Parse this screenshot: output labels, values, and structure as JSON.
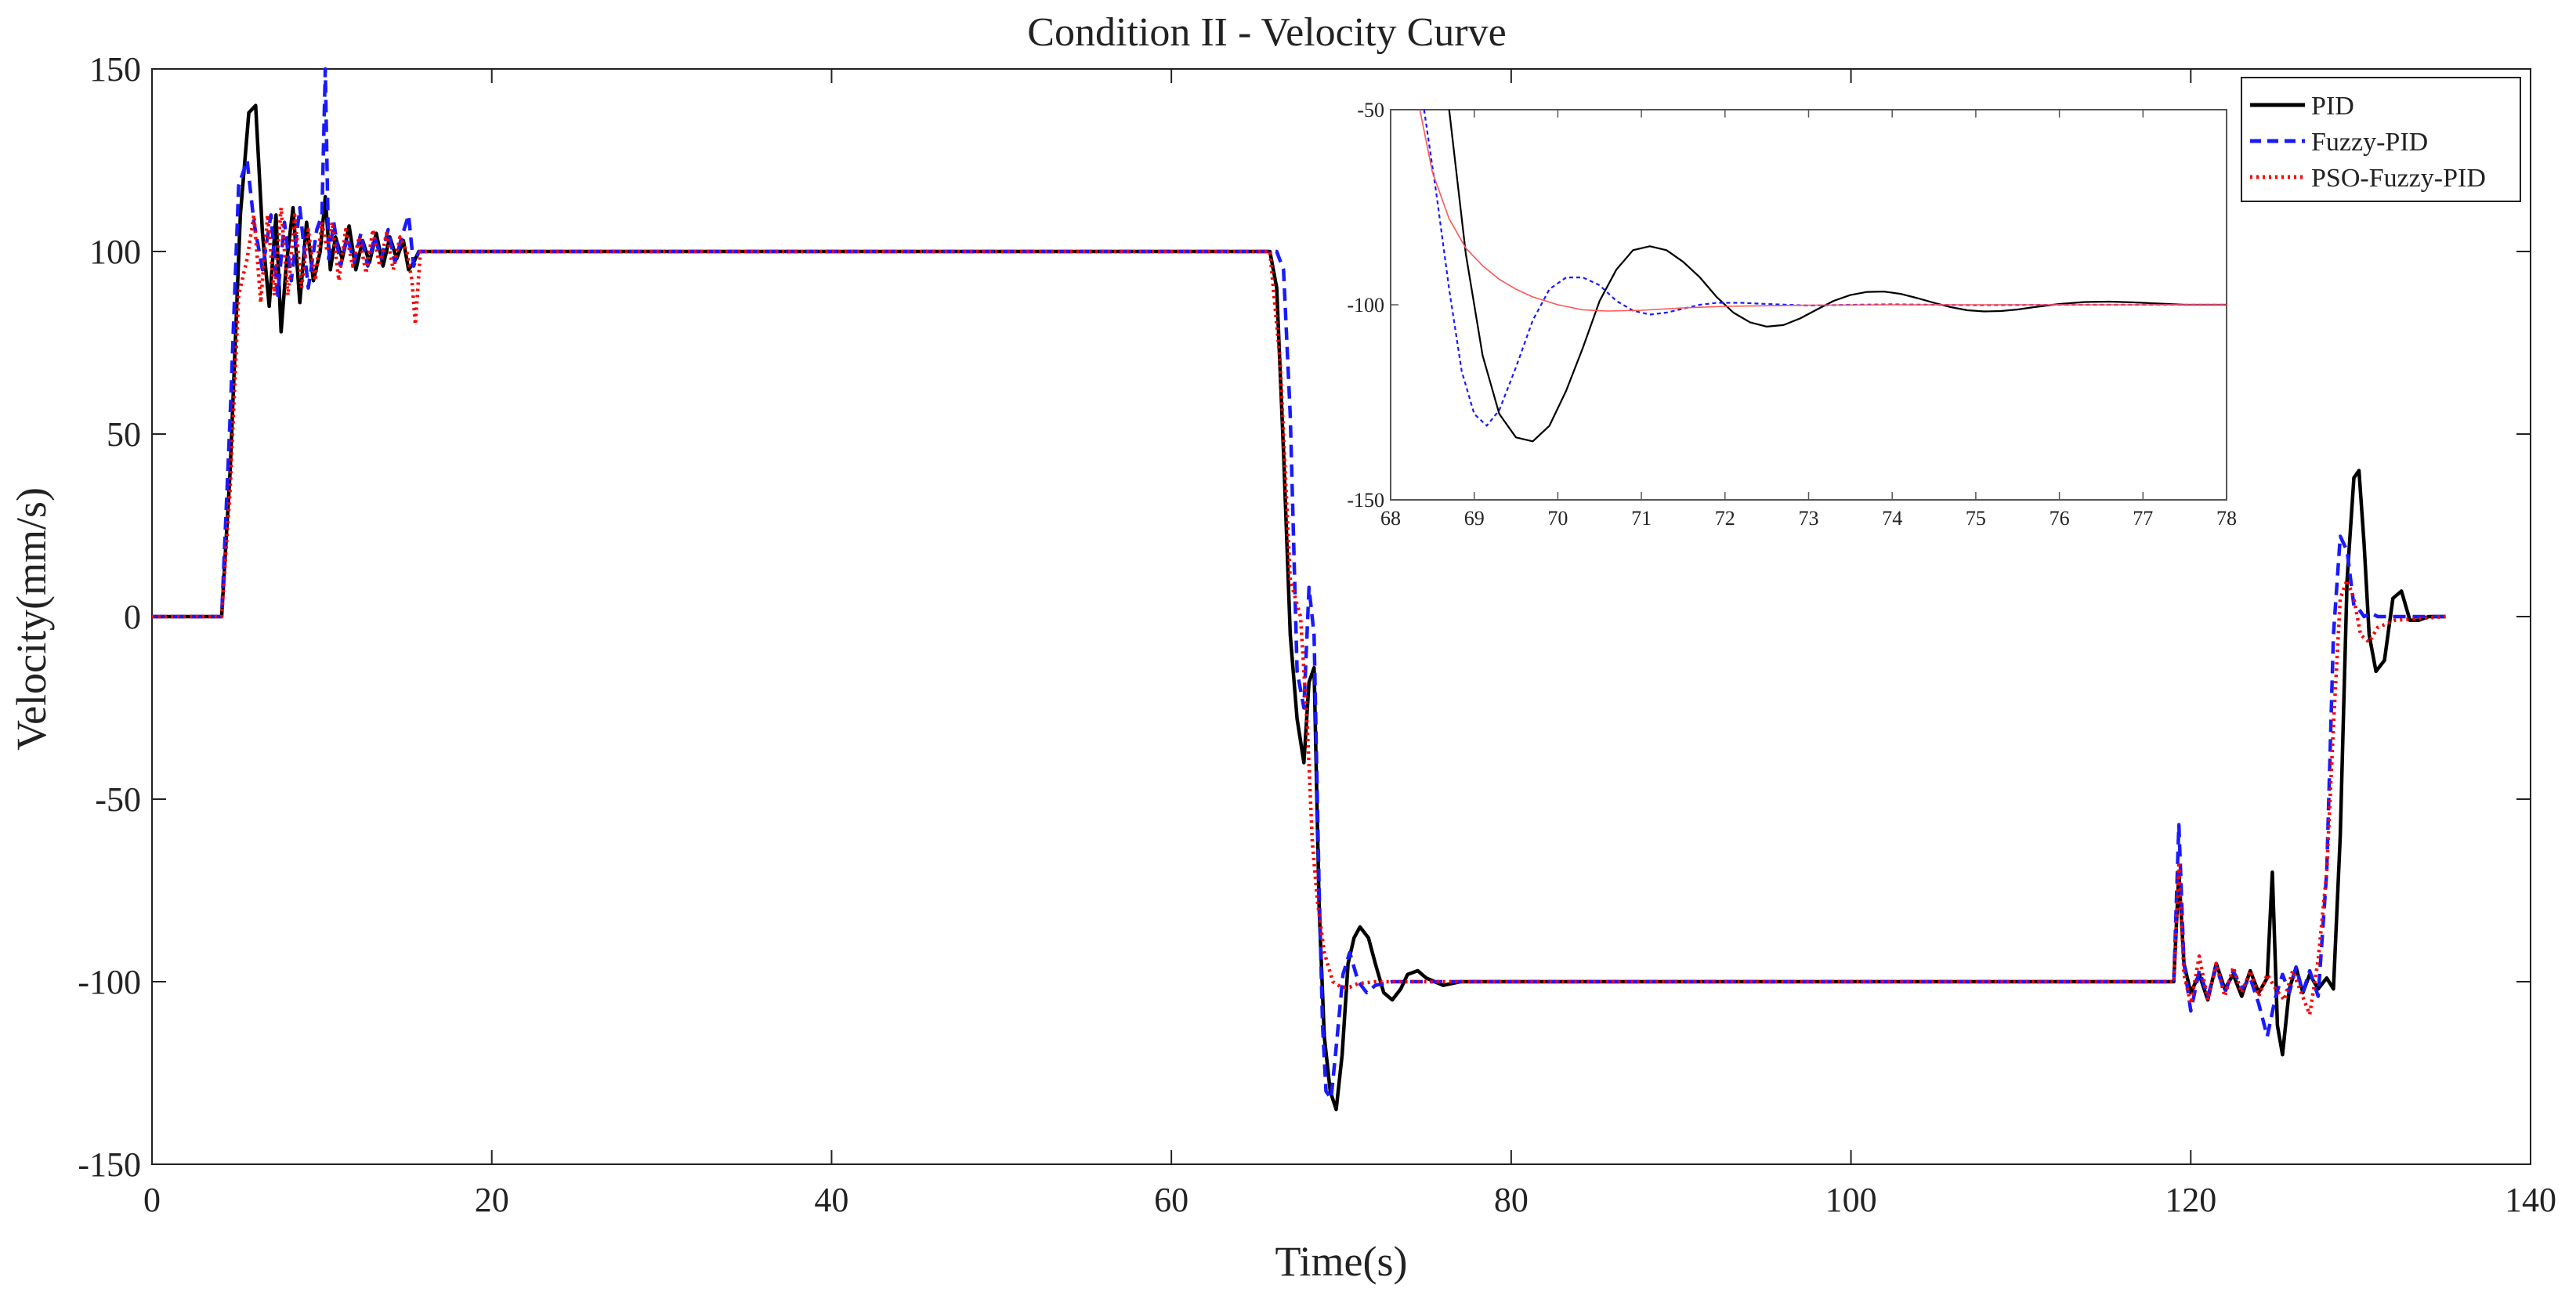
{
  "chart_data": {
    "type": "line",
    "title": "Condition II - Velocity Curve",
    "xlabel": "Time(s)",
    "ylabel": "Velocity(mm/s)",
    "xlim": [
      0,
      140
    ],
    "ylim": [
      -150,
      150
    ],
    "xticks": [
      0,
      20,
      40,
      60,
      80,
      100,
      120,
      140
    ],
    "yticks": [
      150,
      100,
      50,
      0,
      -50,
      -100,
      -150
    ],
    "legend_position": "top-right",
    "series": [
      {
        "name": "PID",
        "color": "#000000",
        "style": "solid",
        "x": [
          0,
          4.1,
          4.6,
          5.2,
          5.7,
          6.1,
          6.5,
          6.9,
          7.3,
          7.6,
          7.9,
          8.3,
          8.7,
          9.1,
          9.5,
          9.9,
          10.2,
          10.5,
          10.8,
          11.2,
          11.6,
          12.0,
          12.4,
          12.8,
          13.2,
          13.6,
          14.0,
          14.4,
          14.8,
          15.1,
          15.4,
          15.7,
          16.0,
          20,
          40,
          60,
          65.8,
          66.2,
          66.6,
          67.0,
          67.4,
          67.8,
          68.1,
          68.4,
          68.7,
          69.0,
          69.35,
          69.7,
          70.05,
          70.4,
          70.75,
          71.1,
          71.6,
          72.0,
          72.5,
          73.0,
          73.5,
          73.9,
          74.5,
          75.0,
          75.5,
          76.0,
          77.0,
          78.0,
          80,
          100,
          119.0,
          119.3,
          119.6,
          120.0,
          120.5,
          121.0,
          121.5,
          122.0,
          122.5,
          123.0,
          123.5,
          124.0,
          124.5,
          124.8,
          125.1,
          125.4,
          125.8,
          126.2,
          126.6,
          127.0,
          127.5,
          128.0,
          128.4,
          128.8,
          129.2,
          129.6,
          129.9,
          130.2,
          130.5,
          130.9,
          131.4,
          131.9,
          132.4,
          132.9,
          133.4,
          134.0,
          135.0
        ],
        "y": [
          0,
          0,
          40,
          110,
          138,
          140,
          105,
          85,
          110,
          78,
          96,
          112,
          86,
          108,
          92,
          100,
          115,
          95,
          104,
          98,
          107,
          95,
          103,
          97,
          105,
          96,
          104,
          98,
          103,
          95,
          97,
          100,
          100,
          100,
          100,
          100,
          100,
          90,
          45,
          -5,
          -28,
          -40,
          -18,
          -14,
          -80,
          -115,
          -130,
          -135,
          -120,
          -95,
          -88,
          -85,
          -88,
          -95,
          -103,
          -105,
          -102,
          -98,
          -97,
          -99,
          -100,
          -101,
          -100,
          -100,
          -100,
          -100,
          -100,
          -70,
          -95,
          -103,
          -98,
          -105,
          -95,
          -102,
          -98,
          -104,
          -97,
          -103,
          -99,
          -70,
          -112,
          -120,
          -102,
          -96,
          -103,
          -98,
          -102,
          -99,
          -102,
          -60,
          10,
          38,
          40,
          20,
          -5,
          -15,
          -12,
          5,
          7,
          -1,
          -1,
          0,
          0
        ]
      },
      {
        "name": "Fuzzy-PID",
        "color": "#1a1aff",
        "style": "dashed",
        "x": [
          0,
          4.1,
          4.6,
          5.1,
          5.6,
          6.0,
          6.5,
          7.0,
          7.4,
          7.8,
          8.2,
          8.7,
          9.2,
          9.7,
          10.0,
          10.2,
          10.4,
          10.7,
          11.1,
          11.5,
          11.9,
          12.3,
          12.7,
          13.1,
          13.5,
          13.9,
          14.3,
          14.7,
          15.1,
          15.4,
          15.7,
          16.0,
          20,
          40,
          60,
          65.8,
          66.2,
          66.6,
          67.0,
          67.4,
          67.8,
          68.1,
          68.4,
          68.7,
          68.9,
          69.1,
          69.4,
          69.7,
          70.1,
          70.5,
          71.0,
          71.5,
          72.0,
          73.0,
          74.0,
          76.0,
          78.0,
          80,
          100,
          119.0,
          119.3,
          119.6,
          120.0,
          120.5,
          121.0,
          121.5,
          122.0,
          122.5,
          123.0,
          123.5,
          124.0,
          124.5,
          125.0,
          125.4,
          125.8,
          126.2,
          126.6,
          127.0,
          127.5,
          128.0,
          128.4,
          128.8,
          129.2,
          129.6,
          129.9,
          130.2,
          130.6,
          131.0,
          131.5,
          132.5,
          135.0
        ],
        "y": [
          0,
          0,
          55,
          118,
          125,
          108,
          95,
          110,
          88,
          108,
          92,
          112,
          90,
          106,
          110,
          150,
          98,
          108,
          96,
          104,
          97,
          105,
          96,
          104,
          98,
          106,
          97,
          104,
          110,
          96,
          100,
          100,
          100,
          100,
          100,
          100,
          100,
          95,
          55,
          -15,
          -25,
          8,
          -5,
          -75,
          -112,
          -130,
          -132,
          -118,
          -98,
          -92,
          -100,
          -103,
          -101,
          -100,
          -100,
          -100,
          -100,
          -100,
          -100,
          -100,
          -57,
          -95,
          -108,
          -97,
          -104,
          -96,
          -103,
          -97,
          -102,
          -99,
          -106,
          -115,
          -104,
          -98,
          -103,
          -96,
          -103,
          -97,
          -104,
          -70,
          -5,
          22,
          18,
          3,
          2,
          0,
          1,
          0,
          0,
          0,
          0
        ]
      },
      {
        "name": "PSO-Fuzzy-PID",
        "color": "#ff0000",
        "style": "dotted",
        "x": [
          0,
          4.1,
          4.6,
          5.1,
          5.6,
          6.0,
          6.4,
          6.8,
          7.2,
          7.6,
          8.0,
          8.4,
          8.8,
          9.2,
          9.6,
          10.0,
          10.3,
          10.6,
          11.0,
          11.4,
          11.8,
          12.2,
          12.6,
          13.0,
          13.4,
          13.8,
          14.2,
          14.6,
          15.0,
          15.3,
          15.5,
          15.8,
          16.0,
          20,
          40,
          60,
          65.8,
          66.4,
          67.0,
          67.6,
          68.0,
          68.3,
          68.6,
          69.0,
          69.5,
          70.0,
          70.5,
          71.0,
          72.0,
          74.0,
          76.0,
          78.0,
          80,
          100,
          119.0,
          119.3,
          119.6,
          120.0,
          120.5,
          121.0,
          121.5,
          122.0,
          122.5,
          123.0,
          123.5,
          124.0,
          124.5,
          125.0,
          125.5,
          126.0,
          126.5,
          127.0,
          127.5,
          128.0,
          128.4,
          128.8,
          129.2,
          129.6,
          130.0,
          130.5,
          131.0,
          132.0,
          135.0
        ],
        "y": [
          0,
          0,
          35,
          88,
          98,
          110,
          86,
          110,
          88,
          112,
          88,
          110,
          90,
          106,
          92,
          108,
          100,
          108,
          92,
          106,
          96,
          104,
          94,
          106,
          96,
          105,
          95,
          104,
          100,
          92,
          80,
          100,
          100,
          100,
          100,
          100,
          100,
          70,
          10,
          0,
          -30,
          -62,
          -78,
          -92,
          -100,
          -101.5,
          -101.5,
          -100.5,
          -100,
          -100,
          -100,
          -100,
          -100,
          -100,
          -100,
          -68,
          -98,
          -106,
          -93,
          -105,
          -95,
          -104,
          -96,
          -103,
          -97,
          -104,
          -98,
          -102,
          -105,
          -97,
          -103,
          -109,
          -94,
          -70,
          -30,
          5,
          10,
          5,
          -5,
          -7,
          -3,
          -1,
          0
        ]
      }
    ],
    "inset": {
      "xlim": [
        68,
        78
      ],
      "ylim": [
        -150,
        -50
      ],
      "xticks": [
        68,
        69,
        70,
        71,
        72,
        73,
        74,
        75,
        76,
        77,
        78
      ],
      "yticks": [
        -50,
        -100,
        -150
      ],
      "series": [
        {
          "name": "PID",
          "x": [
            68.7,
            68.9,
            69.1,
            69.3,
            69.5,
            69.7,
            69.9,
            70.1,
            70.3,
            70.5,
            70.7,
            70.9,
            71.1,
            71.3,
            71.5,
            71.7,
            71.9,
            72.1,
            72.3,
            72.5,
            72.7,
            72.9,
            73.1,
            73.3,
            73.5,
            73.7,
            73.9,
            74.1,
            74.3,
            74.5,
            74.7,
            74.9,
            75.1,
            75.3,
            75.5,
            75.7,
            76.0,
            76.3,
            76.6,
            76.9,
            77.2,
            77.5,
            78.0
          ],
          "y": [
            -50,
            -87,
            -113,
            -128,
            -134,
            -135,
            -131,
            -122,
            -111,
            -99,
            -91,
            -86,
            -85,
            -86,
            -89,
            -93,
            -98,
            -102,
            -104.5,
            -105.6,
            -105.2,
            -103.5,
            -101.2,
            -99,
            -97.5,
            -96.7,
            -96.6,
            -97.2,
            -98.3,
            -99.5,
            -100.6,
            -101.4,
            -101.7,
            -101.6,
            -101.2,
            -100.6,
            -99.8,
            -99.3,
            -99.2,
            -99.4,
            -99.7,
            -100,
            -100
          ]
        },
        {
          "name": "Fuzzy-PID",
          "x": [
            68.4,
            68.55,
            68.7,
            68.85,
            69.0,
            69.15,
            69.3,
            69.5,
            69.7,
            69.9,
            70.1,
            70.3,
            70.5,
            70.7,
            70.9,
            71.1,
            71.3,
            71.5,
            71.7,
            71.9,
            72.2,
            72.5,
            73.0,
            73.5,
            74.0,
            74.5,
            75.0,
            76.0,
            77.0,
            78.0
          ],
          "y": [
            -50,
            -72,
            -96,
            -117,
            -128,
            -131,
            -127,
            -116,
            -104,
            -96,
            -93,
            -93,
            -95,
            -99,
            -101.5,
            -102.5,
            -102,
            -101,
            -100,
            -99.5,
            -99.5,
            -99.8,
            -100.2,
            -100,
            -99.9,
            -100,
            -100.1,
            -100,
            -100,
            -100
          ]
        },
        {
          "name": "PSO-Fuzzy-PID",
          "x": [
            68.35,
            68.5,
            68.7,
            68.9,
            69.1,
            69.3,
            69.5,
            69.7,
            70.0,
            70.3,
            70.6,
            71.0,
            71.5,
            72.0,
            73.0,
            74.0,
            75.0,
            76.0,
            77.0,
            78.0
          ],
          "y": [
            -50,
            -66,
            -78,
            -85.5,
            -90,
            -93.5,
            -96,
            -98,
            -100,
            -101.3,
            -101.6,
            -101.4,
            -100.8,
            -100.4,
            -100.1,
            -100,
            -100,
            -100,
            -100,
            -100
          ]
        }
      ]
    }
  }
}
